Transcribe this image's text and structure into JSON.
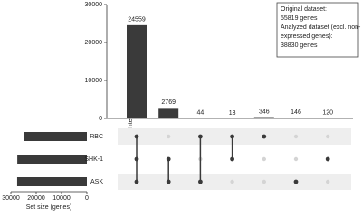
{
  "chart_data": {
    "type": "upset",
    "ylabel": "Intersection size (genes)",
    "xlabel": "Set size (genes)",
    "sets": [
      "RBC",
      "SHK-1",
      "ASK"
    ],
    "set_sizes": [
      24962,
      27461,
      27518
    ],
    "set_xlim": [
      30000,
      0
    ],
    "set_xticks": [
      30000,
      20000,
      10000,
      0
    ],
    "members": [
      [
        0,
        1,
        2
      ],
      [
        1,
        2
      ],
      [
        0,
        2
      ],
      [
        0,
        1
      ],
      [
        0
      ],
      [
        2
      ],
      [
        1
      ]
    ],
    "values": [
      24559,
      2769,
      44,
      13,
      346,
      146,
      120
    ],
    "color": "#3a3a3a",
    "ylim": [
      0,
      30000
    ],
    "yticks": [
      0,
      10000,
      20000,
      30000
    ],
    "annotation": [
      "Original dataset:",
      "55819 genes",
      "Analyzed dataset (excl. non-",
      "expressed genes):",
      "38830 genes"
    ]
  }
}
